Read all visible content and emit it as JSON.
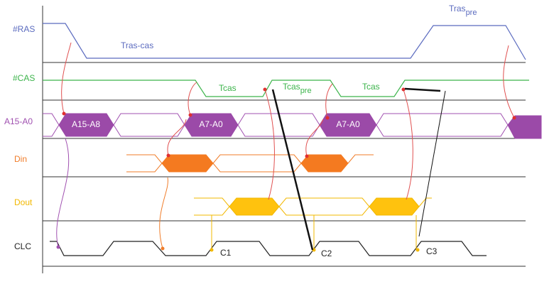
{
  "signals": [
    "#RAS",
    "#CAS",
    "A15-A0",
    "Din",
    "Dout",
    "CLC"
  ],
  "ras_annotations": {
    "tras_cas": "Tras-cas",
    "tras_pre": {
      "main": "Tras",
      "sub": "pre"
    }
  },
  "cas_annotations": {
    "tcas_1": "Tcas",
    "tcas_pre": {
      "main": "Tcas",
      "sub": "pre"
    },
    "tcas_2": "Tcas"
  },
  "address_labels": [
    "A15-A8",
    "A7-A0",
    "A7-A0"
  ],
  "clock_labels": [
    "C1",
    "C2",
    "C3"
  ]
}
